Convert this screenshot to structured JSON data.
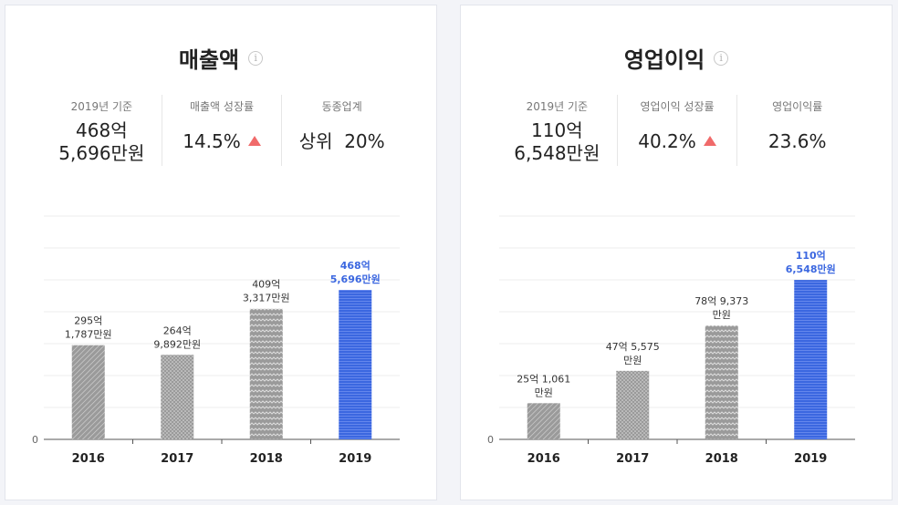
{
  "revenue": {
    "title": "매출액",
    "stats": [
      {
        "label": "2019년 기준",
        "lines": [
          "468억",
          "5,696만원"
        ],
        "arrow": false
      },
      {
        "label": "매출액 성장률",
        "lines": [
          "14.5%"
        ],
        "arrow": true
      },
      {
        "label": "동종업계",
        "lines": [
          "상위  20%"
        ],
        "arrow": false
      }
    ]
  },
  "operating_profit": {
    "title": "영업이익",
    "stats": [
      {
        "label": "2019년 기준",
        "lines": [
          "110억",
          "6,548만원"
        ],
        "arrow": false
      },
      {
        "label": "영업이익 성장률",
        "lines": [
          "40.2%"
        ],
        "arrow": true
      },
      {
        "label": "영업이익률",
        "lines": [
          "23.6%"
        ],
        "arrow": false
      }
    ]
  },
  "colors": {
    "bar_gray": "#9a9a9a",
    "bar_highlight": "#3b67e0",
    "arrow_up": "#f06a6a"
  },
  "chart_data": [
    {
      "type": "bar",
      "categories": [
        "2016",
        "2017",
        "2018",
        "2019"
      ],
      "values": [
        295.1787,
        264.9892,
        409.3317,
        468.5696
      ],
      "value_labels": [
        [
          "295억",
          "1,787만원"
        ],
        [
          "264억",
          "9,892만원"
        ],
        [
          "409억",
          "3,317만원"
        ],
        [
          "468억",
          "5,696만원"
        ]
      ],
      "highlight_index": 3,
      "ylabel_zero": "0",
      "ylim": [
        0,
        700
      ],
      "unit": "억원",
      "grid": true
    },
    {
      "type": "bar",
      "categories": [
        "2016",
        "2017",
        "2018",
        "2019"
      ],
      "values": [
        25.1061,
        47.5575,
        78.9373,
        110.6548
      ],
      "value_labels": [
        [
          "25억 1,061",
          "만원"
        ],
        [
          "47억 5,575",
          "만원"
        ],
        [
          "78억 9,373",
          "만원"
        ],
        [
          "110억",
          "6,548만원"
        ]
      ],
      "highlight_index": 3,
      "ylabel_zero": "0",
      "ylim": [
        0,
        155
      ],
      "unit": "억원",
      "grid": true
    }
  ]
}
